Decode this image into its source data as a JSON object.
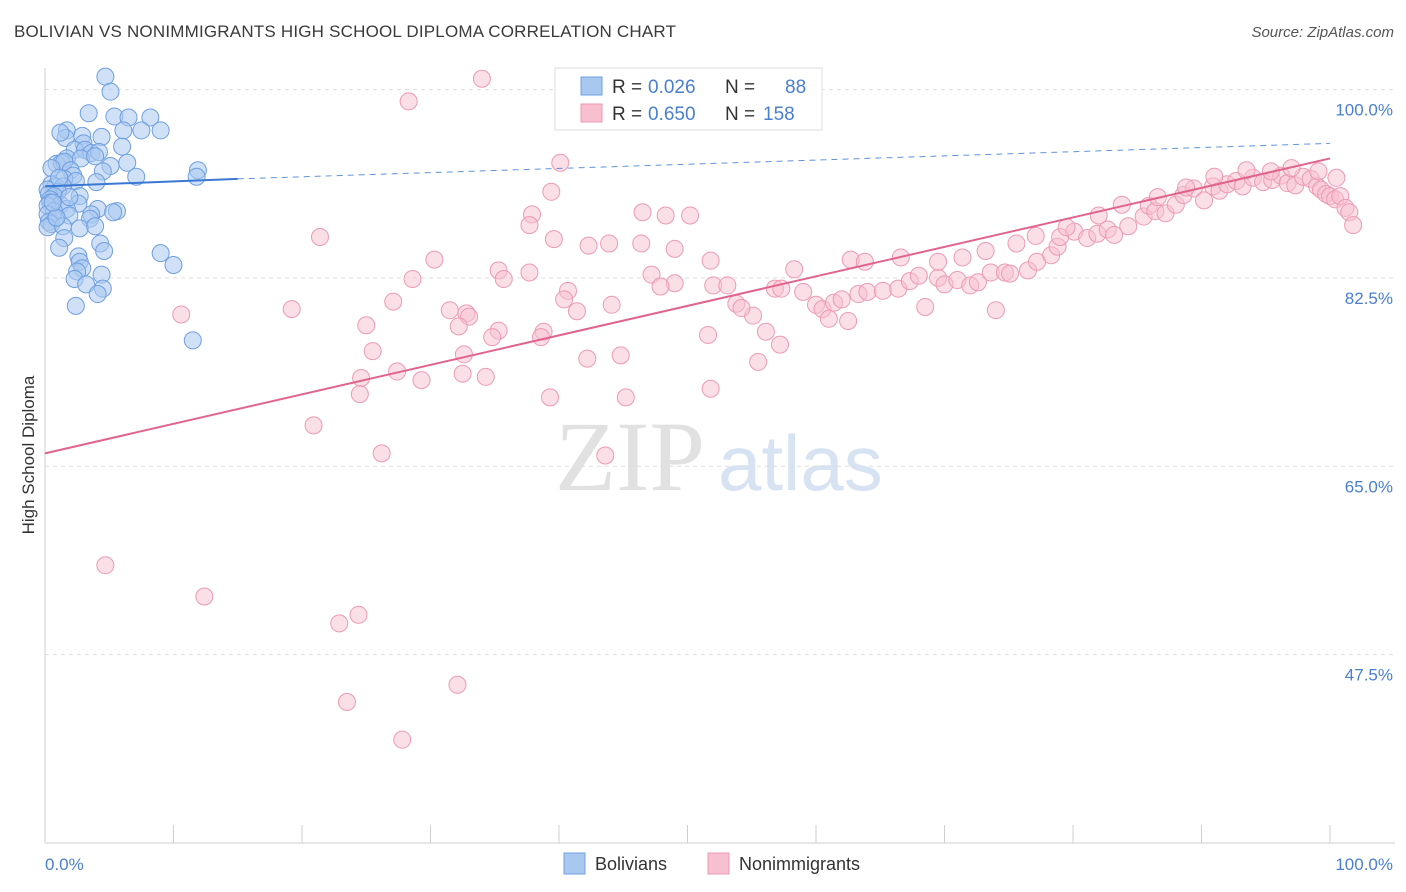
{
  "header": {
    "title": "BOLIVIAN VS NONIMMIGRANTS HIGH SCHOOL DIPLOMA CORRELATION CHART",
    "source": "Source: ZipAtlas.com"
  },
  "watermark": {
    "zip": "ZIP",
    "atlas": "atlas"
  },
  "colors": {
    "bolivian_fill": "#a9c8f0",
    "bolivian_stroke": "#6f9fe0",
    "bolivian_line": "#3a78d4",
    "nonimm_fill": "#f7bfd0",
    "nonimm_stroke": "#ec9ab5",
    "nonimm_line": "#e0648e",
    "accent_text": "#4a7fd0"
  },
  "stats_legend": {
    "rows": [
      {
        "r_label": "R =",
        "r_value": "0.026",
        "n_label": "N =",
        "n_value": "88"
      },
      {
        "r_label": "R =",
        "r_value": "0.650",
        "n_label": "N =",
        "n_value": "158"
      }
    ]
  },
  "chart_data": {
    "type": "scatter",
    "title": "BOLIVIAN VS NONIMMIGRANTS HIGH SCHOOL DIPLOMA CORRELATION CHART",
    "xlabel": "",
    "ylabel": "High School Diploma",
    "xlim": [
      0,
      100
    ],
    "ylim": [
      30,
      102
    ],
    "x_tick_labels": [
      "0.0%",
      "100.0%"
    ],
    "y_ticks": [
      47.5,
      65.0,
      82.5,
      100.0
    ],
    "y_tick_labels": [
      "47.5%",
      "65.0%",
      "82.5%",
      "100.0%"
    ],
    "grid": true,
    "legend_position": "bottom-center",
    "series": [
      {
        "name": "Bolivians",
        "color": "#a9c8f0",
        "trend": {
          "x": [
            0,
            15
          ],
          "y": [
            91.0,
            91.7
          ],
          "dashed_to": [
            100,
            95.0
          ]
        },
        "points": [
          [
            4.7,
            101.2
          ],
          [
            5.1,
            99.8
          ],
          [
            3.4,
            97.8
          ],
          [
            5.4,
            97.5
          ],
          [
            6.5,
            97.4
          ],
          [
            8.2,
            97.4
          ],
          [
            1.7,
            96.2
          ],
          [
            6.1,
            96.2
          ],
          [
            7.5,
            96.2
          ],
          [
            9.0,
            96.2
          ],
          [
            1.6,
            95.5
          ],
          [
            2.9,
            95.7
          ],
          [
            4.4,
            95.6
          ],
          [
            3.0,
            95.0
          ],
          [
            2.3,
            94.4
          ],
          [
            3.1,
            94.4
          ],
          [
            3.6,
            94.1
          ],
          [
            4.2,
            94.2
          ],
          [
            1.7,
            93.6
          ],
          [
            2.8,
            93.6
          ],
          [
            0.9,
            93.1
          ],
          [
            1.3,
            93.2
          ],
          [
            1.5,
            93.3
          ],
          [
            6.4,
            93.2
          ],
          [
            5.1,
            92.9
          ],
          [
            2.0,
            92.5
          ],
          [
            0.5,
            92.7
          ],
          [
            4.5,
            92.4
          ],
          [
            11.9,
            92.5
          ],
          [
            2.2,
            92.0
          ],
          [
            7.1,
            91.9
          ],
          [
            11.8,
            91.9
          ],
          [
            1.5,
            91.7
          ],
          [
            2.4,
            91.5
          ],
          [
            4.0,
            91.4
          ],
          [
            0.5,
            91.2
          ],
          [
            0.8,
            91.0
          ],
          [
            1.4,
            91.0
          ],
          [
            0.2,
            90.7
          ],
          [
            1.0,
            90.5
          ],
          [
            0.3,
            90.3
          ],
          [
            0.7,
            90.1
          ],
          [
            2.7,
            90.1
          ],
          [
            0.4,
            89.8
          ],
          [
            0.4,
            89.5
          ],
          [
            1.2,
            89.3
          ],
          [
            2.6,
            89.4
          ],
          [
            0.2,
            89.2
          ],
          [
            1.7,
            88.9
          ],
          [
            0.7,
            88.7
          ],
          [
            4.1,
            88.9
          ],
          [
            5.6,
            88.7
          ],
          [
            5.3,
            88.6
          ],
          [
            0.2,
            88.4
          ],
          [
            1.9,
            88.3
          ],
          [
            3.6,
            88.4
          ],
          [
            0.8,
            88.0
          ],
          [
            3.5,
            88.0
          ],
          [
            0.3,
            87.7
          ],
          [
            0.5,
            87.5
          ],
          [
            0.2,
            87.2
          ],
          [
            1.4,
            87.3
          ],
          [
            2.7,
            87.1
          ],
          [
            3.9,
            87.3
          ],
          [
            1.5,
            86.2
          ],
          [
            4.3,
            85.7
          ],
          [
            1.1,
            85.3
          ],
          [
            4.6,
            85.0
          ],
          [
            9.0,
            84.8
          ],
          [
            2.6,
            84.5
          ],
          [
            2.7,
            84.0
          ],
          [
            10.0,
            83.7
          ],
          [
            2.9,
            83.4
          ],
          [
            2.5,
            83.1
          ],
          [
            4.4,
            82.8
          ],
          [
            2.3,
            82.4
          ],
          [
            3.2,
            81.9
          ],
          [
            4.5,
            81.5
          ],
          [
            4.1,
            81.0
          ],
          [
            2.4,
            79.9
          ],
          [
            11.5,
            76.7
          ],
          [
            1.2,
            96.0
          ],
          [
            3.9,
            93.8
          ],
          [
            6.0,
            94.7
          ],
          [
            1.1,
            91.8
          ],
          [
            0.9,
            88.1
          ],
          [
            1.9,
            90.0
          ],
          [
            0.6,
            89.5
          ]
        ]
      },
      {
        "name": "Nonimmigrants",
        "color": "#f7bfd0",
        "trend": {
          "x": [
            0,
            100
          ],
          "y": [
            66.2,
            93.6
          ]
        },
        "points": [
          [
            34.0,
            101.0
          ],
          [
            28.3,
            98.9
          ],
          [
            40.1,
            93.2
          ],
          [
            39.4,
            90.5
          ],
          [
            46.5,
            88.6
          ],
          [
            37.9,
            88.4
          ],
          [
            48.3,
            88.3
          ],
          [
            50.2,
            88.3
          ],
          [
            37.7,
            87.4
          ],
          [
            21.4,
            86.3
          ],
          [
            39.6,
            86.1
          ],
          [
            42.3,
            85.5
          ],
          [
            43.9,
            85.7
          ],
          [
            46.4,
            85.7
          ],
          [
            49.0,
            85.2
          ],
          [
            30.3,
            84.2
          ],
          [
            51.8,
            84.1
          ],
          [
            35.3,
            83.2
          ],
          [
            37.7,
            83.0
          ],
          [
            47.2,
            82.8
          ],
          [
            28.6,
            82.4
          ],
          [
            35.7,
            82.4
          ],
          [
            40.7,
            81.3
          ],
          [
            49.0,
            82.0
          ],
          [
            52.0,
            81.8
          ],
          [
            53.1,
            81.8
          ],
          [
            47.9,
            81.7
          ],
          [
            40.4,
            80.5
          ],
          [
            27.1,
            80.3
          ],
          [
            44.1,
            80.0
          ],
          [
            41.4,
            79.4
          ],
          [
            31.5,
            79.5
          ],
          [
            32.8,
            79.2
          ],
          [
            33.0,
            78.9
          ],
          [
            19.2,
            79.6
          ],
          [
            10.6,
            79.1
          ],
          [
            53.8,
            80.1
          ],
          [
            25.0,
            78.1
          ],
          [
            32.2,
            78.0
          ],
          [
            35.3,
            77.6
          ],
          [
            32.6,
            75.4
          ],
          [
            42.2,
            75.0
          ],
          [
            27.4,
            73.8
          ],
          [
            38.8,
            77.5
          ],
          [
            44.8,
            75.3
          ],
          [
            32.5,
            73.6
          ],
          [
            34.3,
            73.3
          ],
          [
            24.6,
            73.2
          ],
          [
            29.3,
            73.0
          ],
          [
            34.8,
            77.0
          ],
          [
            38.6,
            77.0
          ],
          [
            25.5,
            75.7
          ],
          [
            24.5,
            71.7
          ],
          [
            39.3,
            71.4
          ],
          [
            45.2,
            71.4
          ],
          [
            51.8,
            72.2
          ],
          [
            55.5,
            74.7
          ],
          [
            56.1,
            77.5
          ],
          [
            55.1,
            79.0
          ],
          [
            54.2,
            79.7
          ],
          [
            56.8,
            81.5
          ],
          [
            57.3,
            81.5
          ],
          [
            59.0,
            81.2
          ],
          [
            60.0,
            80.0
          ],
          [
            60.5,
            79.6
          ],
          [
            61.4,
            80.2
          ],
          [
            62.0,
            80.5
          ],
          [
            63.3,
            81.0
          ],
          [
            64.0,
            81.2
          ],
          [
            65.2,
            81.3
          ],
          [
            66.4,
            81.5
          ],
          [
            67.3,
            82.2
          ],
          [
            68.0,
            82.7
          ],
          [
            69.5,
            82.5
          ],
          [
            70.0,
            81.9
          ],
          [
            71.0,
            82.3
          ],
          [
            72.0,
            81.8
          ],
          [
            72.6,
            82.1
          ],
          [
            73.6,
            83.0
          ],
          [
            74.7,
            83.0
          ],
          [
            75.1,
            82.9
          ],
          [
            76.5,
            83.2
          ],
          [
            77.2,
            84.0
          ],
          [
            78.3,
            84.6
          ],
          [
            78.8,
            85.4
          ],
          [
            79.0,
            86.3
          ],
          [
            80.1,
            86.8
          ],
          [
            81.1,
            86.2
          ],
          [
            81.9,
            86.6
          ],
          [
            82.7,
            87.0
          ],
          [
            83.2,
            86.5
          ],
          [
            84.3,
            87.3
          ],
          [
            85.5,
            88.2
          ],
          [
            85.9,
            89.2
          ],
          [
            86.4,
            88.7
          ],
          [
            87.2,
            88.5
          ],
          [
            88.0,
            89.3
          ],
          [
            88.6,
            90.2
          ],
          [
            89.4,
            90.8
          ],
          [
            90.2,
            89.7
          ],
          [
            90.9,
            91.0
          ],
          [
            91.4,
            90.6
          ],
          [
            92.0,
            91.2
          ],
          [
            92.7,
            91.5
          ],
          [
            93.2,
            91.0
          ],
          [
            94.0,
            91.8
          ],
          [
            94.8,
            91.4
          ],
          [
            95.5,
            91.6
          ],
          [
            96.2,
            92.0
          ],
          [
            96.7,
            91.3
          ],
          [
            97.3,
            91.1
          ],
          [
            97.9,
            91.9
          ],
          [
            98.5,
            91.7
          ],
          [
            99.0,
            91.0
          ],
          [
            99.3,
            90.7
          ],
          [
            99.7,
            90.3
          ],
          [
            100.0,
            90.1
          ],
          [
            100.4,
            89.8
          ],
          [
            100.8,
            90.1
          ],
          [
            101.2,
            89.0
          ],
          [
            58.3,
            83.3
          ],
          [
            62.7,
            84.2
          ],
          [
            63.8,
            84.0
          ],
          [
            66.6,
            84.4
          ],
          [
            69.5,
            84.0
          ],
          [
            71.4,
            84.4
          ],
          [
            73.2,
            85.0
          ],
          [
            75.6,
            85.7
          ],
          [
            77.1,
            86.4
          ],
          [
            79.5,
            87.2
          ],
          [
            82.0,
            88.3
          ],
          [
            83.8,
            89.3
          ],
          [
            86.6,
            90.0
          ],
          [
            88.8,
            90.9
          ],
          [
            91.0,
            91.9
          ],
          [
            93.5,
            92.5
          ],
          [
            95.4,
            92.4
          ],
          [
            97.0,
            92.7
          ],
          [
            99.1,
            92.4
          ],
          [
            100.5,
            91.8
          ],
          [
            101.5,
            88.6
          ],
          [
            101.8,
            87.4
          ],
          [
            20.9,
            68.8
          ],
          [
            26.2,
            66.2
          ],
          [
            43.6,
            66.0
          ],
          [
            4.7,
            55.8
          ],
          [
            12.4,
            52.9
          ],
          [
            22.9,
            50.4
          ],
          [
            24.4,
            51.2
          ],
          [
            32.1,
            44.7
          ],
          [
            23.5,
            43.1
          ],
          [
            27.8,
            39.6
          ],
          [
            51.6,
            77.2
          ],
          [
            57.2,
            76.3
          ],
          [
            62.5,
            78.5
          ],
          [
            68.5,
            79.8
          ],
          [
            74.0,
            79.5
          ],
          [
            61.0,
            78.7
          ]
        ]
      }
    ]
  },
  "bottom_legend": [
    {
      "label": "Bolivians"
    },
    {
      "label": "Nonimmigrants"
    }
  ]
}
